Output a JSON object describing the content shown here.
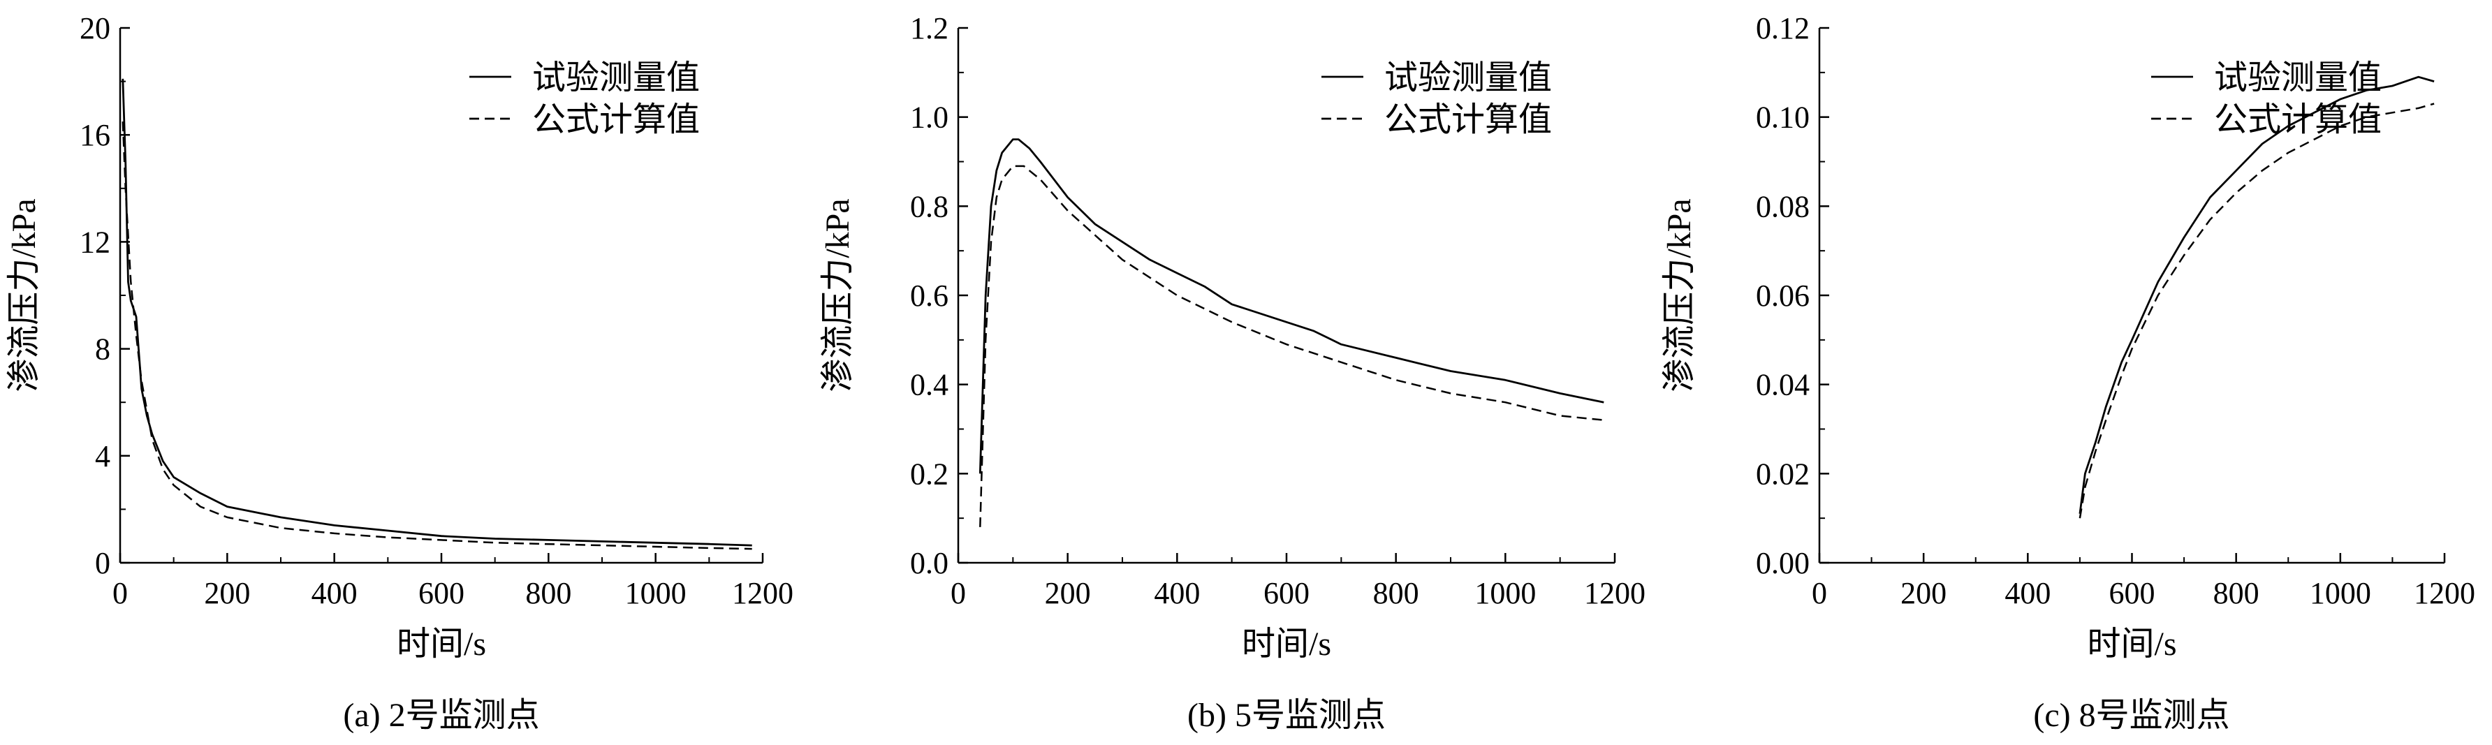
{
  "chart_data": [
    {
      "type": "line",
      "caption": "(a) 2号监测点",
      "xlabel": "时间/s",
      "ylabel": "渗流压力/kPa",
      "xlim": [
        0,
        1200
      ],
      "ylim": [
        0,
        20
      ],
      "xticks": [
        0,
        200,
        400,
        600,
        800,
        1000,
        1200
      ],
      "yticks": [
        0,
        4,
        8,
        12,
        16,
        20
      ],
      "legend_position": "top-right",
      "series": [
        {
          "name": "试验测量值",
          "style": "solid",
          "x": [
            5,
            10,
            15,
            20,
            30,
            40,
            50,
            60,
            80,
            100,
            150,
            200,
            300,
            400,
            500,
            600,
            700,
            800,
            900,
            1000,
            1100,
            1180
          ],
          "y": [
            18.1,
            15.0,
            10.5,
            9.8,
            9.2,
            6.5,
            5.5,
            4.8,
            3.8,
            3.2,
            2.6,
            2.1,
            1.7,
            1.4,
            1.2,
            1.0,
            0.9,
            0.85,
            0.8,
            0.75,
            0.7,
            0.65
          ]
        },
        {
          "name": "公式计算值",
          "style": "dashed",
          "x": [
            5,
            10,
            20,
            30,
            40,
            60,
            80,
            100,
            150,
            200,
            300,
            400,
            500,
            600,
            700,
            800,
            900,
            1000,
            1100,
            1180
          ],
          "y": [
            16.5,
            14.0,
            10.5,
            8.5,
            6.8,
            4.6,
            3.5,
            2.9,
            2.1,
            1.7,
            1.3,
            1.1,
            0.95,
            0.85,
            0.75,
            0.7,
            0.65,
            0.6,
            0.55,
            0.52
          ]
        }
      ]
    },
    {
      "type": "line",
      "caption": "(b) 5号监测点",
      "xlabel": "时间/s",
      "ylabel": "渗流压力/kPa",
      "xlim": [
        0,
        1200
      ],
      "ylim": [
        0,
        1.2
      ],
      "xticks": [
        0,
        200,
        400,
        600,
        800,
        1000,
        1200
      ],
      "yticks": [
        "0.0",
        "0.2",
        "0.4",
        "0.6",
        "0.8",
        "1.0",
        "1.2"
      ],
      "legend_position": "top-right",
      "series": [
        {
          "name": "试验测量值",
          "style": "solid",
          "x": [
            40,
            50,
            60,
            70,
            80,
            100,
            110,
            130,
            150,
            200,
            250,
            300,
            350,
            400,
            450,
            500,
            600,
            650,
            700,
            800,
            900,
            1000,
            1100,
            1180
          ],
          "y": [
            0.2,
            0.6,
            0.8,
            0.88,
            0.92,
            0.95,
            0.95,
            0.93,
            0.9,
            0.82,
            0.76,
            0.72,
            0.68,
            0.65,
            0.62,
            0.58,
            0.54,
            0.52,
            0.49,
            0.46,
            0.43,
            0.41,
            0.38,
            0.36
          ]
        },
        {
          "name": "公式计算值",
          "style": "dashed",
          "x": [
            40,
            50,
            60,
            70,
            80,
            100,
            120,
            150,
            200,
            300,
            400,
            500,
            600,
            700,
            800,
            900,
            1000,
            1100,
            1180
          ],
          "y": [
            0.08,
            0.5,
            0.72,
            0.82,
            0.86,
            0.89,
            0.89,
            0.86,
            0.79,
            0.68,
            0.6,
            0.54,
            0.49,
            0.45,
            0.41,
            0.38,
            0.36,
            0.33,
            0.32
          ]
        }
      ]
    },
    {
      "type": "line",
      "caption": "(c) 8号监测点",
      "xlabel": "时间/s",
      "ylabel": "渗流压力/kPa",
      "xlim": [
        0,
        1200
      ],
      "ylim": [
        0,
        0.12
      ],
      "xticks": [
        0,
        200,
        400,
        600,
        800,
        1000,
        1200
      ],
      "yticks": [
        "0.00",
        "0.02",
        "0.04",
        "0.06",
        "0.08",
        "0.10",
        "0.12"
      ],
      "legend_position": "top-right",
      "series": [
        {
          "name": "试验测量值",
          "style": "solid",
          "x": [
            500,
            510,
            530,
            550,
            580,
            600,
            650,
            700,
            750,
            800,
            850,
            900,
            950,
            1000,
            1050,
            1100,
            1150,
            1180
          ],
          "y": [
            0.011,
            0.02,
            0.027,
            0.035,
            0.045,
            0.05,
            0.063,
            0.073,
            0.082,
            0.088,
            0.094,
            0.098,
            0.101,
            0.104,
            0.106,
            0.107,
            0.109,
            0.108
          ]
        },
        {
          "name": "公式计算值",
          "style": "dashed",
          "x": [
            500,
            510,
            530,
            550,
            580,
            600,
            650,
            700,
            750,
            800,
            850,
            900,
            950,
            1000,
            1050,
            1100,
            1150,
            1180
          ],
          "y": [
            0.01,
            0.017,
            0.025,
            0.032,
            0.042,
            0.048,
            0.06,
            0.069,
            0.077,
            0.083,
            0.088,
            0.092,
            0.095,
            0.098,
            0.1,
            0.101,
            0.102,
            0.103
          ]
        }
      ]
    }
  ]
}
